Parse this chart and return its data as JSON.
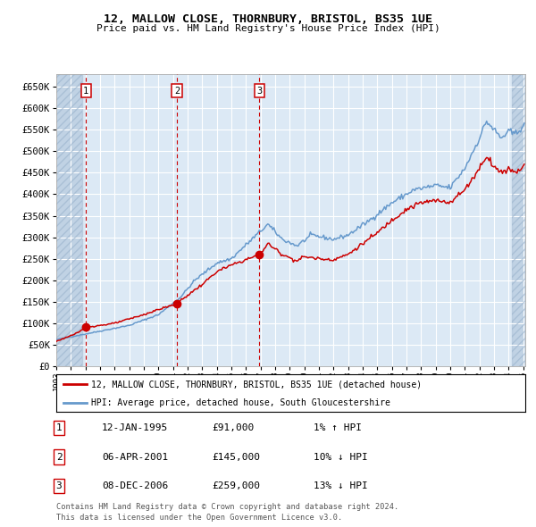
{
  "title1": "12, MALLOW CLOSE, THORNBURY, BRISTOL, BS35 1UE",
  "title2": "Price paid vs. HM Land Registry's House Price Index (HPI)",
  "ytick_values": [
    0,
    50000,
    100000,
    150000,
    200000,
    250000,
    300000,
    350000,
    400000,
    450000,
    500000,
    550000,
    600000,
    650000
  ],
  "ylim": [
    0,
    680000
  ],
  "sale_dates": [
    "12-JAN-1995",
    "06-APR-2001",
    "08-DEC-2006"
  ],
  "sale_prices": [
    91000,
    145000,
    259000
  ],
  "sale_hpi_pct": [
    "1% ↑ HPI",
    "10% ↓ HPI",
    "13% ↓ HPI"
  ],
  "sale_labels": [
    "1",
    "2",
    "3"
  ],
  "sale_years_decimal": [
    1995.04,
    2001.26,
    2006.93
  ],
  "legend_line1": "12, MALLOW CLOSE, THORNBURY, BRISTOL, BS35 1UE (detached house)",
  "legend_line2": "HPI: Average price, detached house, South Gloucestershire",
  "footer1": "Contains HM Land Registry data © Crown copyright and database right 2024.",
  "footer2": "This data is licensed under the Open Government Licence v3.0.",
  "hpi_color": "#6699cc",
  "price_color": "#cc0000",
  "bg_color": "#dce9f5",
  "hatch_edge_color": "#a0b8d0",
  "grid_color": "#ffffff",
  "box_color": "#cc0000"
}
